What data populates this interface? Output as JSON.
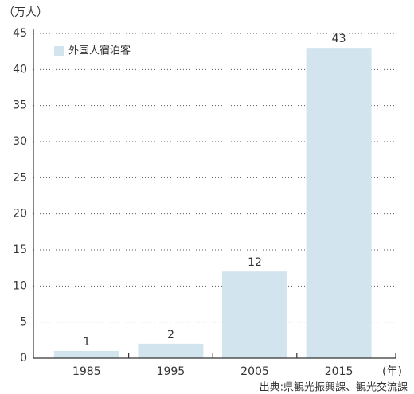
{
  "chart_data": {
    "type": "bar",
    "y_label": "（万人）",
    "x_label": "(年)",
    "source": "出典:県観光振興課、観光交流課",
    "categories": [
      "1985",
      "1995",
      "2005",
      "2015"
    ],
    "series": [
      {
        "name": "外国人宿泊客",
        "color": "#d2e5ef",
        "values": [
          1,
          2,
          12,
          43
        ]
      }
    ],
    "ylim": [
      0,
      45
    ],
    "yticks": [
      0,
      5,
      10,
      15,
      20,
      25,
      30,
      35,
      40,
      45
    ],
    "grid": true,
    "legend": "upper left"
  }
}
